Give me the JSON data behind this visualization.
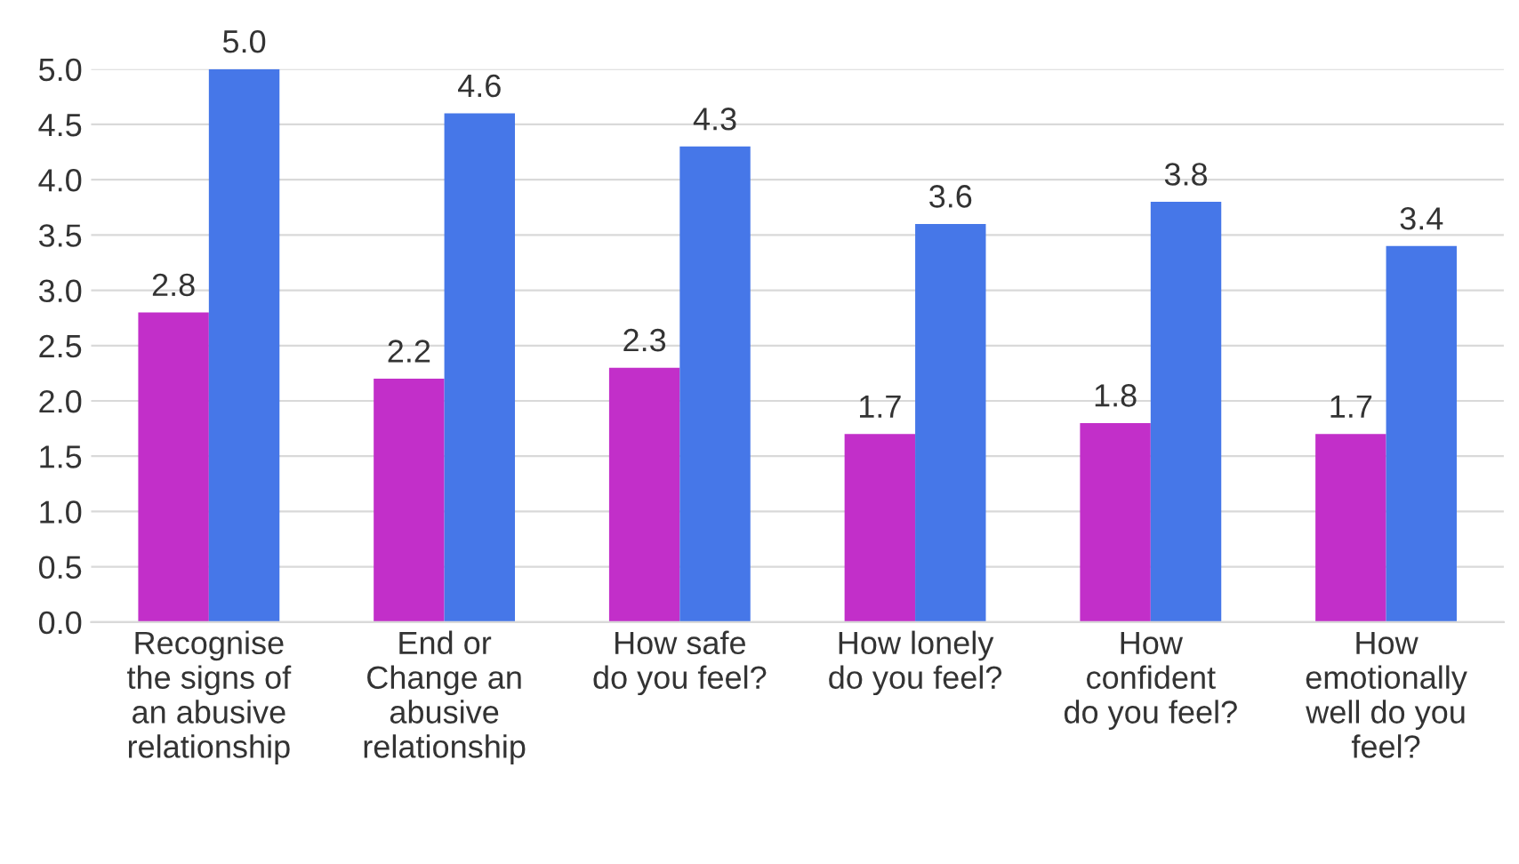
{
  "chart_data": {
    "type": "bar",
    "categories": [
      "Recognise\nthe signs of\nan abusive\nrelationship",
      "End or\nChange an\nabusive\nrelationship",
      "How safe\ndo you feel?",
      "How lonely\ndo you feel?",
      "How\nconfident\ndo you feel?",
      "How\nemotionally\nwell do you\nfeel?"
    ],
    "series": [
      {
        "color": "#c22fc9",
        "values": [
          2.8,
          2.2,
          2.3,
          1.7,
          1.8,
          1.7
        ],
        "value_labels": [
          "2.8",
          "2.2",
          "2.3",
          "1.7",
          "1.8",
          "1.7"
        ]
      },
      {
        "color": "#4677e8",
        "values": [
          5.0,
          4.6,
          4.3,
          3.6,
          3.8,
          3.4
        ],
        "value_labels": [
          "5.0",
          "4.6",
          "4.3",
          "3.6",
          "3.8",
          "3.4"
        ]
      }
    ],
    "ylim": [
      0,
      5
    ],
    "yticks": [
      {
        "value": 0,
        "label": "0.0"
      },
      {
        "value": 0.5,
        "label": "0.5"
      },
      {
        "value": 1,
        "label": "1.0"
      },
      {
        "value": 1.5,
        "label": "1.5"
      },
      {
        "value": 2,
        "label": "2.0"
      },
      {
        "value": 2.5,
        "label": "2.5"
      },
      {
        "value": 3,
        "label": "3.0"
      },
      {
        "value": 3.5,
        "label": "3.5"
      },
      {
        "value": 4,
        "label": "4.0"
      },
      {
        "value": 4.5,
        "label": "4.5"
      },
      {
        "value": 5,
        "label": "5.0"
      }
    ],
    "grid": "y"
  }
}
